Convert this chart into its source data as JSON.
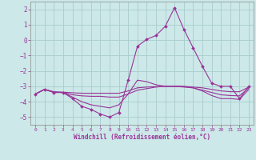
{
  "xlabel": "Windchill (Refroidissement éolien,°C)",
  "bg_color": "#cce8e8",
  "grid_color": "#aacccc",
  "line_color": "#993399",
  "xlim": [
    -0.5,
    23.5
  ],
  "ylim": [
    -5.5,
    2.5
  ],
  "yticks": [
    -5,
    -4,
    -3,
    -2,
    -1,
    0,
    1,
    2
  ],
  "xticks": [
    0,
    1,
    2,
    3,
    4,
    5,
    6,
    7,
    8,
    9,
    10,
    11,
    12,
    13,
    14,
    15,
    16,
    17,
    18,
    19,
    20,
    21,
    22,
    23
  ],
  "lines": [
    {
      "x": [
        0,
        1,
        2,
        3,
        4,
        5,
        6,
        7,
        8,
        9,
        10,
        11,
        12,
        13,
        14,
        15,
        16,
        17,
        18,
        19,
        20,
        21,
        22,
        23
      ],
      "y": [
        -3.5,
        -3.2,
        -3.4,
        -3.4,
        -3.8,
        -4.3,
        -4.5,
        -4.8,
        -5.0,
        -4.7,
        -2.6,
        -0.4,
        0.05,
        0.3,
        0.9,
        2.1,
        0.7,
        -0.5,
        -1.7,
        -2.8,
        -3.0,
        -3.0,
        -3.8,
        -3.0
      ],
      "marker": "D",
      "markersize": 2.0
    },
    {
      "x": [
        0,
        1,
        2,
        3,
        4,
        5,
        6,
        7,
        8,
        9,
        10,
        11,
        12,
        13,
        14,
        15,
        16,
        17,
        18,
        19,
        20,
        21,
        22,
        23
      ],
      "y": [
        -3.5,
        -3.2,
        -3.35,
        -3.38,
        -3.42,
        -3.45,
        -3.45,
        -3.45,
        -3.45,
        -3.45,
        -3.3,
        -3.1,
        -3.05,
        -3.02,
        -3.0,
        -3.0,
        -3.0,
        -3.05,
        -3.1,
        -3.2,
        -3.3,
        -3.35,
        -3.35,
        -3.05
      ],
      "marker": null,
      "markersize": 0
    },
    {
      "x": [
        0,
        1,
        2,
        3,
        4,
        5,
        6,
        7,
        8,
        9,
        10,
        11,
        12,
        13,
        14,
        15,
        16,
        17,
        18,
        19,
        20,
        21,
        22,
        23
      ],
      "y": [
        -3.5,
        -3.2,
        -3.38,
        -3.4,
        -3.55,
        -3.62,
        -3.65,
        -3.65,
        -3.7,
        -3.7,
        -3.5,
        -3.25,
        -3.15,
        -3.05,
        -3.0,
        -3.0,
        -3.02,
        -3.1,
        -3.25,
        -3.4,
        -3.55,
        -3.6,
        -3.62,
        -3.1
      ],
      "marker": null,
      "markersize": 0
    },
    {
      "x": [
        0,
        1,
        2,
        3,
        4,
        5,
        6,
        7,
        8,
        9,
        10,
        11,
        12,
        13,
        14,
        15,
        16,
        17,
        18,
        19,
        20,
        21,
        22,
        23
      ],
      "y": [
        -3.5,
        -3.2,
        -3.4,
        -3.4,
        -3.7,
        -4.0,
        -4.2,
        -4.3,
        -4.4,
        -4.2,
        -3.5,
        -2.6,
        -2.7,
        -2.9,
        -3.0,
        -3.0,
        -3.05,
        -3.1,
        -3.3,
        -3.6,
        -3.8,
        -3.8,
        -3.85,
        -3.2
      ],
      "marker": null,
      "markersize": 0
    }
  ]
}
